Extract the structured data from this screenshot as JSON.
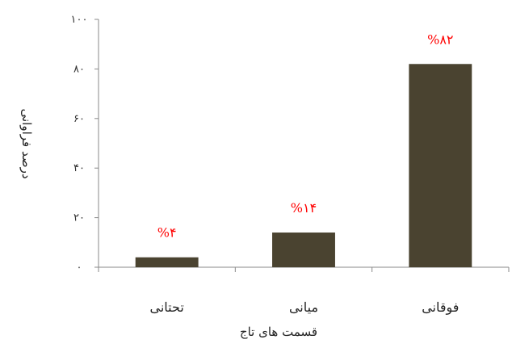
{
  "chart_data": {
    "type": "bar",
    "categories": [
      "تحتانی",
      "میانی",
      "فوقانی"
    ],
    "values": [
      4,
      14,
      82
    ],
    "data_labels": [
      "%۴",
      "%۱۴",
      "%۸۲"
    ],
    "ytick_labels": [
      "۰",
      "۲۰",
      "۴۰",
      "۶۰",
      "۸۰",
      "۱۰۰"
    ],
    "yticks": [
      0,
      20,
      40,
      60,
      80,
      100
    ],
    "ylim": [
      0,
      100
    ],
    "title": "",
    "xlabel": "قسمت های تاج",
    "ylabel": "درصد فراوانی",
    "grid": false,
    "legend": "none",
    "colors": {
      "bar": "#4a4330",
      "data_label": "#ff0000",
      "axis": "#8a8a8a"
    }
  }
}
